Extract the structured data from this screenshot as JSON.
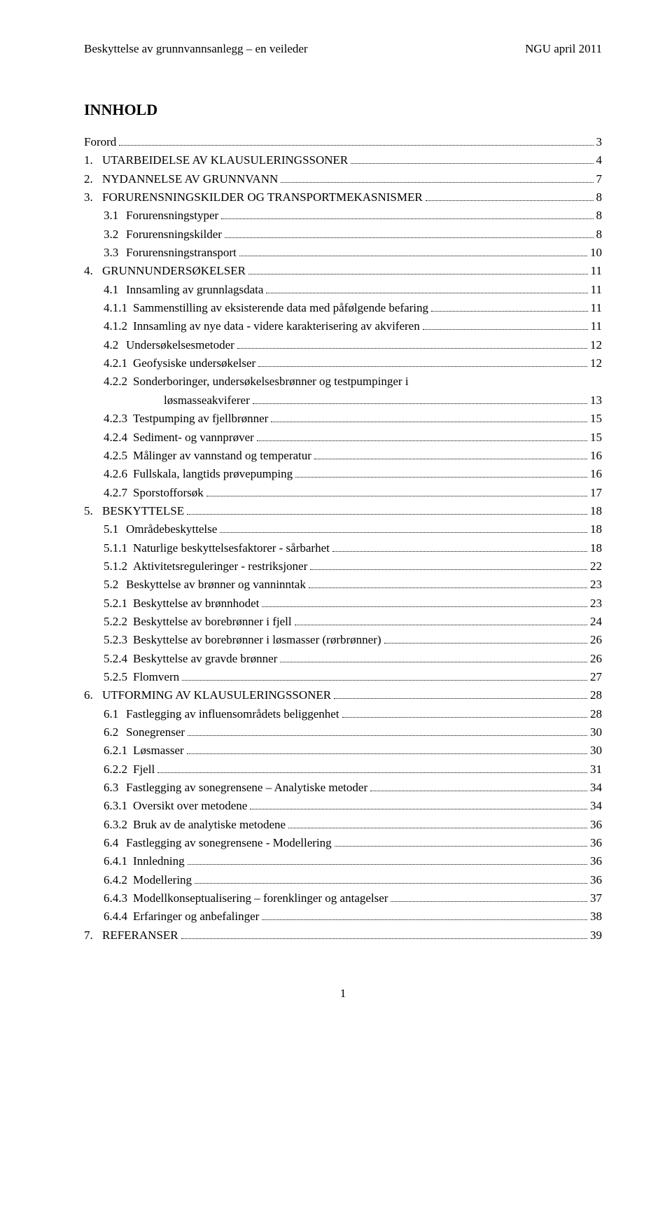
{
  "header": {
    "left": "Beskyttelse av grunnvannsanlegg – en veileder",
    "right": "NGU april 2011"
  },
  "title": "INNHOLD",
  "toc": [
    {
      "num": "",
      "label": "Forord",
      "page": "3",
      "indent": 0
    },
    {
      "num": "1.",
      "label": "UTARBEIDELSE AV KLAUSULERINGSSONER",
      "page": "4",
      "indent": 0
    },
    {
      "num": "2.",
      "label": "NYDANNELSE AV GRUNNVANN",
      "page": "7",
      "indent": 0
    },
    {
      "num": "3.",
      "label": "FORURENSNINGSKILDER OG TRANSPORTMEKASNISMER",
      "page": "8",
      "indent": 0
    },
    {
      "num": "3.1",
      "label": "Forurensningstyper",
      "page": "8",
      "indent": 1
    },
    {
      "num": "3.2",
      "label": "Forurensningskilder",
      "page": "8",
      "indent": 1
    },
    {
      "num": "3.3",
      "label": "Forurensningstransport",
      "page": "10",
      "indent": 1
    },
    {
      "num": "4.",
      "label": "GRUNNUNDERSØKELSER",
      "page": "11",
      "indent": 0
    },
    {
      "num": "4.1",
      "label": "Innsamling av grunnlagsdata",
      "page": "11",
      "indent": 1
    },
    {
      "num": "4.1.1",
      "label": "Sammenstilling av eksisterende data med påfølgende befaring",
      "page": "11",
      "indent": 2
    },
    {
      "num": "4.1.2",
      "label": "Innsamling av nye data - videre karakterisering av akviferen",
      "page": "11",
      "indent": 2
    },
    {
      "num": "4.2",
      "label": "Undersøkelsesmetoder",
      "page": "12",
      "indent": 1
    },
    {
      "num": "4.2.1",
      "label": "Geofysiske undersøkelser",
      "page": "12",
      "indent": 2
    },
    {
      "num": "4.2.2",
      "label": "Sonderboringer, undersøkelsesbrønner og testpumpinger i",
      "page": "",
      "indent": 2,
      "wrap": true,
      "label2": "løsmasseakviferer",
      "page2": "13"
    },
    {
      "num": "4.2.3",
      "label": "Testpumping av fjellbrønner",
      "page": "15",
      "indent": 2
    },
    {
      "num": "4.2.4",
      "label": "Sediment- og vannprøver",
      "page": "15",
      "indent": 2
    },
    {
      "num": "4.2.5",
      "label": "Målinger av vannstand og temperatur",
      "page": "16",
      "indent": 2
    },
    {
      "num": "4.2.6",
      "label": "Fullskala, langtids prøvepumping",
      "page": "16",
      "indent": 2
    },
    {
      "num": "4.2.7",
      "label": "Sporstofforsøk",
      "page": "17",
      "indent": 2
    },
    {
      "num": "5.",
      "label": "BESKYTTELSE",
      "page": "18",
      "indent": 0
    },
    {
      "num": "5.1",
      "label": "Områdebeskyttelse",
      "page": "18",
      "indent": 1
    },
    {
      "num": "5.1.1",
      "label": "Naturlige beskyttelsesfaktorer - sårbarhet",
      "page": "18",
      "indent": 2
    },
    {
      "num": "5.1.2",
      "label": "Aktivitetsreguleringer - restriksjoner",
      "page": "22",
      "indent": 2
    },
    {
      "num": "5.2",
      "label": "Beskyttelse av brønner og vanninntak",
      "page": "23",
      "indent": 1
    },
    {
      "num": "5.2.1",
      "label": "Beskyttelse av brønnhodet",
      "page": "23",
      "indent": 2
    },
    {
      "num": "5.2.2",
      "label": "Beskyttelse av borebrønner i fjell",
      "page": "24",
      "indent": 2
    },
    {
      "num": "5.2.3",
      "label": "Beskyttelse av borebrønner i løsmasser (rørbrønner)",
      "page": "26",
      "indent": 2
    },
    {
      "num": "5.2.4",
      "label": "Beskyttelse av gravde brønner",
      "page": "26",
      "indent": 2
    },
    {
      "num": "5.2.5",
      "label": "Flomvern",
      "page": "27",
      "indent": 2
    },
    {
      "num": "6.",
      "label": "UTFORMING AV KLAUSULERINGSSONER",
      "page": "28",
      "indent": 0
    },
    {
      "num": "6.1",
      "label": "Fastlegging av influensområdets beliggenhet",
      "page": "28",
      "indent": 1
    },
    {
      "num": "6.2",
      "label": "Sonegrenser",
      "page": "30",
      "indent": 1
    },
    {
      "num": "6.2.1",
      "label": "Løsmasser",
      "page": "30",
      "indent": 2
    },
    {
      "num": "6.2.2",
      "label": "Fjell",
      "page": "31",
      "indent": 2
    },
    {
      "num": "6.3",
      "label": "Fastlegging av sonegrensene – Analytiske metoder",
      "page": "34",
      "indent": 1
    },
    {
      "num": "6.3.1",
      "label": "Oversikt over metodene",
      "page": "34",
      "indent": 2
    },
    {
      "num": "6.3.2",
      "label": "Bruk av de analytiske metodene",
      "page": "36",
      "indent": 2
    },
    {
      "num": "6.4",
      "label": "Fastlegging av sonegrensene - Modellering",
      "page": "36",
      "indent": 1
    },
    {
      "num": "6.4.1",
      "label": "Innledning",
      "page": "36",
      "indent": 2
    },
    {
      "num": "6.4.2",
      "label": "Modellering",
      "page": "36",
      "indent": 2
    },
    {
      "num": "6.4.3",
      "label": "Modellkonseptualisering – forenklinger og antagelser",
      "page": "37",
      "indent": 2
    },
    {
      "num": "6.4.4",
      "label": "Erfaringer og anbefalinger",
      "page": "38",
      "indent": 2
    },
    {
      "num": "7.",
      "label": "REFERANSER",
      "page": "39",
      "indent": 0
    }
  ],
  "footer": "1"
}
